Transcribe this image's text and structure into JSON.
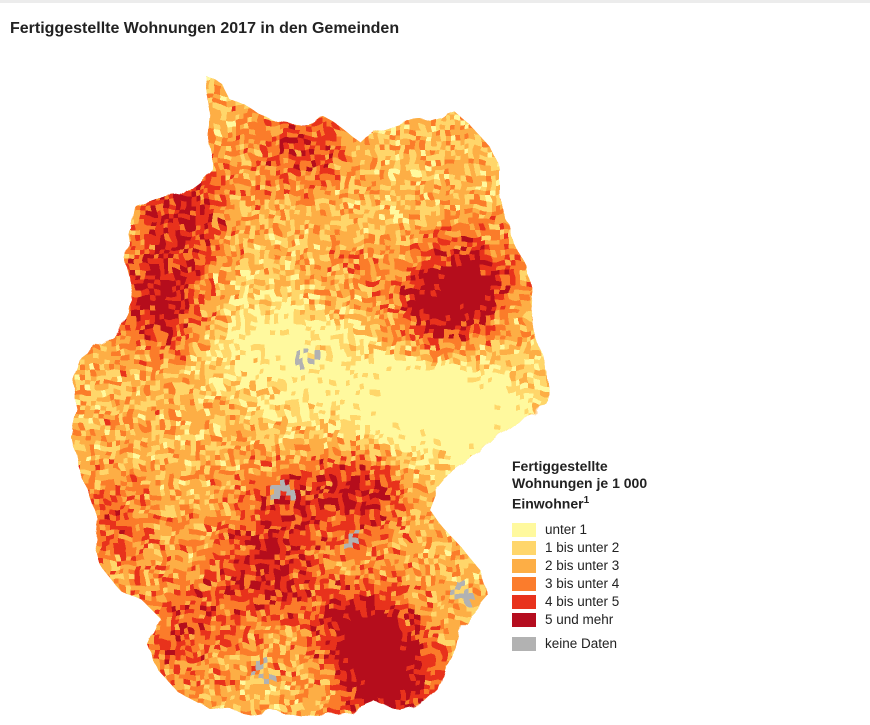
{
  "title": "Fertiggestellte Wohnungen 2017 in den Gemeinden",
  "legend": {
    "title_line1": "Fertiggestellte",
    "title_line2": "Wohnungen je 1 000",
    "title_line3": "Einwohner",
    "footnote": "1",
    "classes": [
      {
        "label": "unter 1",
        "color": "#fff99e"
      },
      {
        "label": "1 bis unter 2",
        "color": "#ffd66b"
      },
      {
        "label": "2 bis unter 3",
        "color": "#fdae45"
      },
      {
        "label": "3 bis unter 4",
        "color": "#fb7c2c"
      },
      {
        "label": "4 bis unter 5",
        "color": "#e8321c"
      },
      {
        "label": "5 und mehr",
        "color": "#b50d1f"
      }
    ],
    "no_data": {
      "label": "keine Daten",
      "color": "#b2b2b2"
    }
  }
}
